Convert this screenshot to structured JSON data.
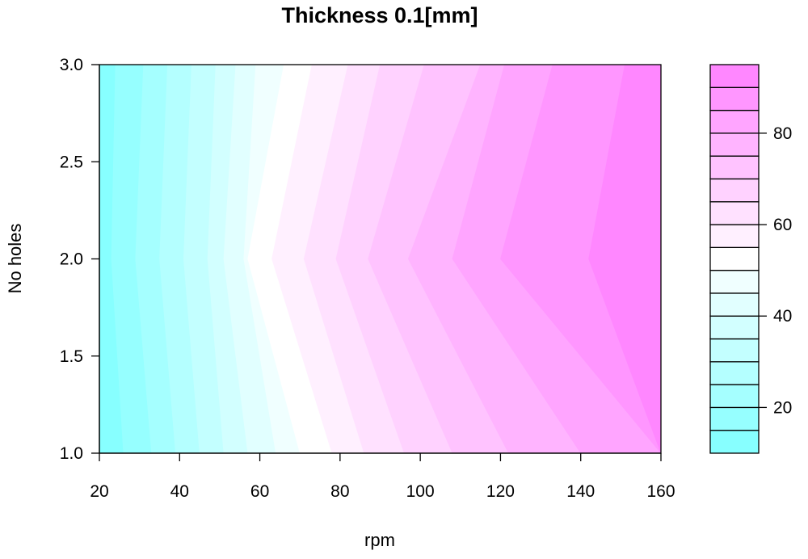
{
  "chart_data": {
    "type": "heatmap",
    "subtype": "filled-contour",
    "title": "Thickness 0.1[mm]",
    "xlabel": "rpm",
    "ylabel": "No holes",
    "xlim": [
      20,
      160
    ],
    "ylim": [
      1.0,
      3.0
    ],
    "x_ticks": [
      "20",
      "40",
      "60",
      "80",
      "100",
      "120",
      "140",
      "160"
    ],
    "y_ticks": [
      "1.0",
      "1.5",
      "2.0",
      "2.5",
      "3.0"
    ],
    "colorbar": {
      "range": [
        10,
        95
      ],
      "ticks": [
        "20",
        "40",
        "60",
        "80"
      ],
      "levels": [
        10,
        15,
        20,
        25,
        30,
        35,
        40,
        45,
        50,
        55,
        60,
        65,
        70,
        75,
        80,
        85,
        90,
        95
      ]
    },
    "contour_boundaries": [
      {
        "level": 15,
        "rpm_at_nholes_1": 26,
        "rpm_at_nholes_2": 23,
        "rpm_at_nholes_3": 24
      },
      {
        "level": 20,
        "rpm_at_nholes_1": 33,
        "rpm_at_nholes_2": 29,
        "rpm_at_nholes_3": 31
      },
      {
        "level": 25,
        "rpm_at_nholes_1": 39,
        "rpm_at_nholes_2": 35,
        "rpm_at_nholes_3": 37
      },
      {
        "level": 30,
        "rpm_at_nholes_1": 45,
        "rpm_at_nholes_2": 41,
        "rpm_at_nholes_3": 43
      },
      {
        "level": 35,
        "rpm_at_nholes_1": 51,
        "rpm_at_nholes_2": 47,
        "rpm_at_nholes_3": 49
      },
      {
        "level": 40,
        "rpm_at_nholes_1": 57,
        "rpm_at_nholes_2": 51,
        "rpm_at_nholes_3": 54
      },
      {
        "level": 45,
        "rpm_at_nholes_1": 64,
        "rpm_at_nholes_2": 56,
        "rpm_at_nholes_3": 59
      },
      {
        "level": 50,
        "rpm_at_nholes_1": 70,
        "rpm_at_nholes_2": 57,
        "rpm_at_nholes_3": 66
      },
      {
        "level": 55,
        "rpm_at_nholes_1": 78,
        "rpm_at_nholes_2": 63,
        "rpm_at_nholes_3": 73
      },
      {
        "level": 60,
        "rpm_at_nholes_1": 86,
        "rpm_at_nholes_2": 71,
        "rpm_at_nholes_3": 82
      },
      {
        "level": 65,
        "rpm_at_nholes_1": 96,
        "rpm_at_nholes_2": 79,
        "rpm_at_nholes_3": 90
      },
      {
        "level": 70,
        "rpm_at_nholes_1": 108,
        "rpm_at_nholes_2": 87,
        "rpm_at_nholes_3": 101
      },
      {
        "level": 75,
        "rpm_at_nholes_1": 122,
        "rpm_at_nholes_2": 97,
        "rpm_at_nholes_3": 115
      },
      {
        "level": 80,
        "rpm_at_nholes_1": 140,
        "rpm_at_nholes_2": 108,
        "rpm_at_nholes_3": 121
      },
      {
        "level": 85,
        "rpm_at_nholes_1": 160,
        "rpm_at_nholes_2": 120,
        "rpm_at_nholes_3": 133
      },
      {
        "level": 90,
        "rpm_at_nholes_1": 160,
        "rpm_at_nholes_2": 142,
        "rpm_at_nholes_3": 151
      }
    ],
    "colors": {
      "low": "#80ffff",
      "mid": "#ffffff",
      "high": "#ff80ff"
    }
  }
}
